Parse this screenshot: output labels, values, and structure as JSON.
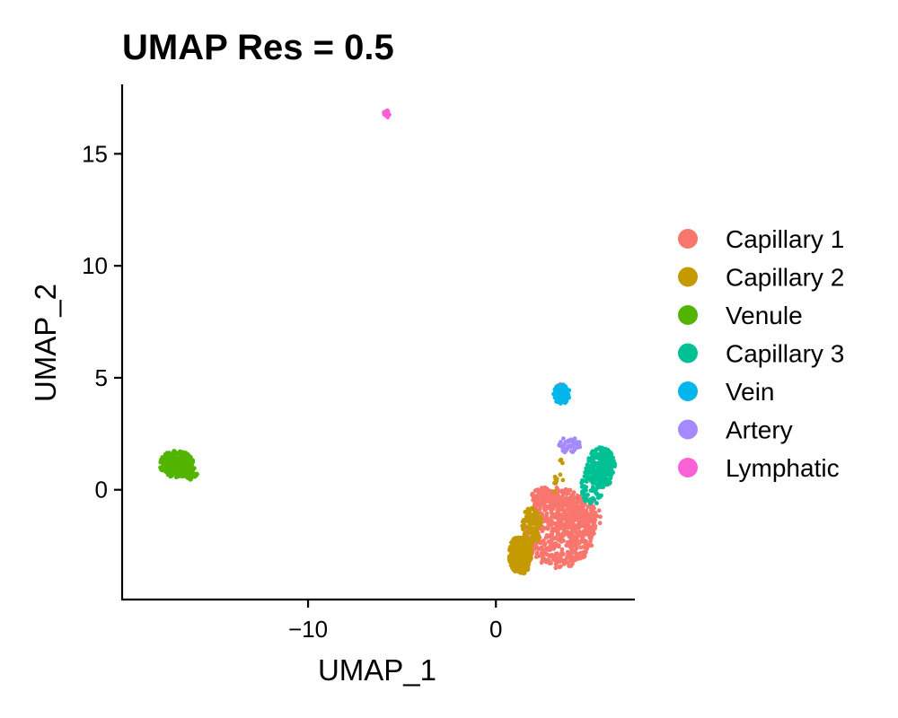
{
  "chart_data": {
    "type": "scatter",
    "title": "UMAP Res = 0.5",
    "xlabel": "UMAP_1",
    "ylabel": "UMAP_2",
    "xlim": [
      -19.9,
      7.4
    ],
    "ylim": [
      -4.9,
      18.1
    ],
    "x_ticks": [
      -10,
      0
    ],
    "x_tick_labels": [
      "−10",
      "0"
    ],
    "y_ticks": [
      0,
      5,
      10,
      15
    ],
    "y_tick_labels": [
      "0",
      "5",
      "10",
      "15"
    ],
    "grid": false,
    "legend_position": "right",
    "series": [
      {
        "name": "Capillary 1",
        "color": "#F8766D",
        "clusters": [
          {
            "cx": 3.4,
            "cy": -1.7,
            "rx": 1.9,
            "ry": 1.8,
            "n": 650
          },
          {
            "cx": 4.4,
            "cy": -1.2,
            "rx": 1.2,
            "ry": 1.0,
            "n": 150
          },
          {
            "cx": 2.6,
            "cy": -0.4,
            "rx": 0.8,
            "ry": 0.5,
            "n": 60
          },
          {
            "cx": 3.5,
            "cy": 4.6,
            "rx": 0.25,
            "ry": 0.15,
            "n": 8
          }
        ]
      },
      {
        "name": "Capillary 2",
        "color": "#C49A00",
        "clusters": [
          {
            "cx": 1.3,
            "cy": -2.9,
            "rx": 0.6,
            "ry": 0.9,
            "n": 240
          },
          {
            "cx": 1.9,
            "cy": -1.6,
            "rx": 0.5,
            "ry": 0.9,
            "n": 90
          },
          {
            "cx": 3.3,
            "cy": 0.6,
            "rx": 0.35,
            "ry": 0.9,
            "n": 12
          }
        ]
      },
      {
        "name": "Venule",
        "color": "#53B400",
        "clusters": [
          {
            "cx": -17.0,
            "cy": 1.15,
            "rx": 0.9,
            "ry": 0.6,
            "n": 260
          },
          {
            "cx": -16.3,
            "cy": 0.75,
            "rx": 0.4,
            "ry": 0.3,
            "n": 60
          }
        ]
      },
      {
        "name": "Capillary 3",
        "color": "#00C094",
        "clusters": [
          {
            "cx": 5.6,
            "cy": 1.0,
            "rx": 0.75,
            "ry": 0.9,
            "n": 220
          },
          {
            "cx": 5.1,
            "cy": 0.2,
            "rx": 0.6,
            "ry": 0.9,
            "n": 70
          }
        ]
      },
      {
        "name": "Vein",
        "color": "#00B6EB",
        "clusters": [
          {
            "cx": 3.5,
            "cy": 4.25,
            "rx": 0.45,
            "ry": 0.45,
            "n": 110
          }
        ]
      },
      {
        "name": "Artery",
        "color": "#A58AFF",
        "clusters": [
          {
            "cx": 3.9,
            "cy": 2.0,
            "rx": 0.6,
            "ry": 0.35,
            "n": 45
          }
        ]
      },
      {
        "name": "Lymphatic",
        "color": "#FB61D7",
        "clusters": [
          {
            "cx": -5.8,
            "cy": 16.8,
            "rx": 0.22,
            "ry": 0.18,
            "n": 12
          }
        ]
      }
    ]
  }
}
